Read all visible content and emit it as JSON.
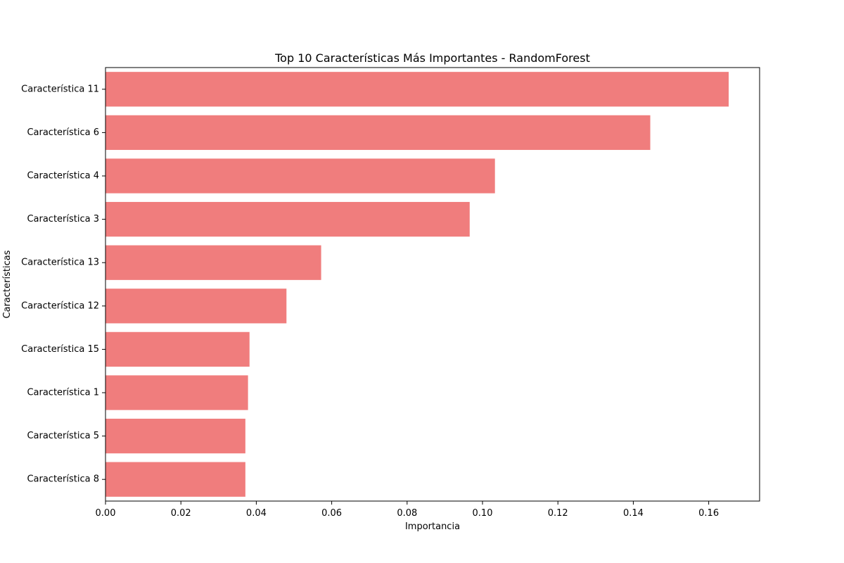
{
  "chart_data": {
    "type": "bar",
    "orientation": "horizontal",
    "title": "Top 10 Características Más Importantes - RandomForest",
    "xlabel": "Importancia",
    "ylabel": "Características",
    "categories": [
      "Característica 11",
      "Característica 6",
      "Característica 4",
      "Característica 3",
      "Característica 13",
      "Característica 12",
      "Característica 15",
      "Característica 1",
      "Característica 5",
      "Característica 8"
    ],
    "values": [
      0.1653,
      0.1445,
      0.1033,
      0.0966,
      0.0572,
      0.048,
      0.0382,
      0.0378,
      0.0371,
      0.0371
    ],
    "xlim": [
      0.0,
      0.1735
    ],
    "xticks": [
      0.0,
      0.02,
      0.04,
      0.06,
      0.08,
      0.1,
      0.12,
      0.14,
      0.16
    ],
    "xtick_labels": [
      "0.00",
      "0.02",
      "0.04",
      "0.06",
      "0.08",
      "0.10",
      "0.12",
      "0.14",
      "0.16"
    ],
    "bar_color": "#f07d7d",
    "grid": false
  }
}
